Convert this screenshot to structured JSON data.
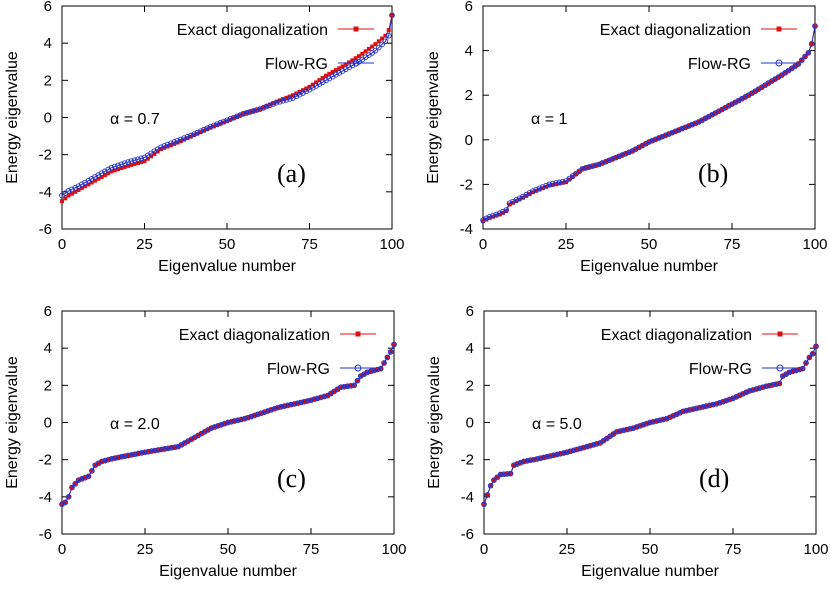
{
  "legend": {
    "exact": "Exact diagonalization",
    "flow": "Flow-RG"
  },
  "colors": {
    "exact": "#dd1111",
    "flow": "#2233cc",
    "axis": "#000000"
  },
  "chart_data": [
    {
      "type": "line",
      "panel_label": "(a)",
      "param_label": "α = 0.7",
      "xlabel": "Eigenvalue number",
      "ylabel": "Energy eigenvalue",
      "xlim": [
        0,
        100
      ],
      "ylim": [
        -6,
        6
      ],
      "xticks": [
        "0",
        "25",
        "50",
        "75",
        "100"
      ],
      "yticks": [
        "-6",
        "-4",
        "-2",
        "0",
        "2",
        "4",
        "6"
      ],
      "grid": false,
      "legend_position": "top-right",
      "series": [
        {
          "name": "Exact diagonalization",
          "marker": "square",
          "knots": [
            [
              0,
              -4.5
            ],
            [
              2,
              -4.2
            ],
            [
              5,
              -3.9
            ],
            [
              10,
              -3.4
            ],
            [
              15,
              -2.9
            ],
            [
              20,
              -2.6
            ],
            [
              25,
              -2.35
            ],
            [
              30,
              -1.7
            ],
            [
              35,
              -1.35
            ],
            [
              40,
              -0.95
            ],
            [
              45,
              -0.55
            ],
            [
              50,
              -0.2
            ],
            [
              55,
              0.2
            ],
            [
              60,
              0.45
            ],
            [
              65,
              0.85
            ],
            [
              70,
              1.2
            ],
            [
              75,
              1.65
            ],
            [
              80,
              2.25
            ],
            [
              85,
              2.75
            ],
            [
              90,
              3.3
            ],
            [
              95,
              3.95
            ],
            [
              98,
              4.4
            ],
            [
              99,
              4.7
            ],
            [
              100,
              5.5
            ]
          ]
        },
        {
          "name": "Flow-RG",
          "marker": "circle",
          "knots": [
            [
              0,
              -4.2
            ],
            [
              2,
              -3.95
            ],
            [
              5,
              -3.7
            ],
            [
              10,
              -3.2
            ],
            [
              15,
              -2.7
            ],
            [
              20,
              -2.4
            ],
            [
              25,
              -2.15
            ],
            [
              30,
              -1.6
            ],
            [
              35,
              -1.25
            ],
            [
              40,
              -0.9
            ],
            [
              45,
              -0.5
            ],
            [
              50,
              -0.15
            ],
            [
              55,
              0.2
            ],
            [
              60,
              0.45
            ],
            [
              65,
              0.8
            ],
            [
              70,
              1.05
            ],
            [
              75,
              1.5
            ],
            [
              80,
              2.0
            ],
            [
              85,
              2.5
            ],
            [
              90,
              3.0
            ],
            [
              95,
              3.6
            ],
            [
              98,
              4.1
            ],
            [
              99,
              4.4
            ],
            [
              100,
              5.5
            ]
          ]
        }
      ]
    },
    {
      "type": "line",
      "panel_label": "(b)",
      "param_label": "α = 1",
      "xlabel": "Eigenvalue number",
      "ylabel": "Energy eigenvalue",
      "xlim": [
        0,
        100
      ],
      "ylim": [
        -4,
        6
      ],
      "xticks": [
        "0",
        "25",
        "50",
        "75",
        "100"
      ],
      "yticks": [
        "-4",
        "-2",
        "0",
        "2",
        "4",
        "6"
      ],
      "grid": false,
      "legend_position": "top-right",
      "series": [
        {
          "name": "Exact diagonalization",
          "marker": "square",
          "knots": [
            [
              0,
              -3.65
            ],
            [
              2,
              -3.5
            ],
            [
              5,
              -3.35
            ],
            [
              7,
              -3.2
            ],
            [
              8,
              -2.9
            ],
            [
              12,
              -2.6
            ],
            [
              15,
              -2.35
            ],
            [
              20,
              -2.05
            ],
            [
              25,
              -1.9
            ],
            [
              30,
              -1.3
            ],
            [
              35,
              -1.1
            ],
            [
              40,
              -0.8
            ],
            [
              45,
              -0.5
            ],
            [
              50,
              -0.1
            ],
            [
              55,
              0.2
            ],
            [
              60,
              0.5
            ],
            [
              65,
              0.8
            ],
            [
              70,
              1.2
            ],
            [
              75,
              1.6
            ],
            [
              80,
              2.0
            ],
            [
              85,
              2.45
            ],
            [
              90,
              2.9
            ],
            [
              95,
              3.4
            ],
            [
              98,
              3.9
            ],
            [
              99,
              4.3
            ],
            [
              100,
              5.1
            ]
          ]
        },
        {
          "name": "Flow-RG",
          "marker": "circle",
          "knots": [
            [
              0,
              -3.6
            ],
            [
              2,
              -3.45
            ],
            [
              5,
              -3.3
            ],
            [
              7,
              -3.15
            ],
            [
              8,
              -2.85
            ],
            [
              12,
              -2.55
            ],
            [
              15,
              -2.3
            ],
            [
              20,
              -2.0
            ],
            [
              25,
              -1.85
            ],
            [
              30,
              -1.3
            ],
            [
              35,
              -1.1
            ],
            [
              40,
              -0.8
            ],
            [
              45,
              -0.5
            ],
            [
              50,
              -0.1
            ],
            [
              55,
              0.2
            ],
            [
              60,
              0.5
            ],
            [
              65,
              0.8
            ],
            [
              70,
              1.2
            ],
            [
              75,
              1.6
            ],
            [
              80,
              2.0
            ],
            [
              85,
              2.45
            ],
            [
              90,
              2.9
            ],
            [
              95,
              3.4
            ],
            [
              98,
              3.9
            ],
            [
              99,
              4.3
            ],
            [
              100,
              5.1
            ]
          ]
        }
      ]
    },
    {
      "type": "line",
      "panel_label": "(c)",
      "param_label": "α = 2.0",
      "xlabel": "Eigenvalue number",
      "ylabel": "Energy eigenvalue",
      "xlim": [
        0,
        100
      ],
      "ylim": [
        -6,
        6
      ],
      "xticks": [
        "0",
        "25",
        "50",
        "75",
        "100"
      ],
      "yticks": [
        "-6",
        "-4",
        "-2",
        "0",
        "2",
        "4",
        "6"
      ],
      "grid": false,
      "legend_position": "top-right",
      "series": [
        {
          "name": "Exact diagonalization",
          "marker": "square",
          "knots": [
            [
              0,
              -4.4
            ],
            [
              1,
              -4.3
            ],
            [
              2,
              -4.0
            ],
            [
              3,
              -3.5
            ],
            [
              5,
              -3.1
            ],
            [
              8,
              -2.9
            ],
            [
              9,
              -2.6
            ],
            [
              10,
              -2.3
            ],
            [
              12,
              -2.1
            ],
            [
              15,
              -1.95
            ],
            [
              25,
              -1.6
            ],
            [
              35,
              -1.3
            ],
            [
              40,
              -0.8
            ],
            [
              45,
              -0.3
            ],
            [
              50,
              0.0
            ],
            [
              55,
              0.2
            ],
            [
              60,
              0.5
            ],
            [
              65,
              0.8
            ],
            [
              70,
              1.0
            ],
            [
              75,
              1.2
            ],
            [
              80,
              1.45
            ],
            [
              84,
              1.9
            ],
            [
              88,
              2.0
            ],
            [
              90,
              2.5
            ],
            [
              92,
              2.7
            ],
            [
              96,
              2.9
            ],
            [
              98,
              3.5
            ],
            [
              99,
              3.8
            ],
            [
              100,
              4.2
            ]
          ]
        },
        {
          "name": "Flow-RG",
          "marker": "circle",
          "knots": [
            [
              0,
              -4.4
            ],
            [
              1,
              -4.3
            ],
            [
              2,
              -4.0
            ],
            [
              3,
              -3.5
            ],
            [
              5,
              -3.1
            ],
            [
              8,
              -2.9
            ],
            [
              9,
              -2.6
            ],
            [
              10,
              -2.3
            ],
            [
              12,
              -2.1
            ],
            [
              15,
              -1.95
            ],
            [
              25,
              -1.6
            ],
            [
              35,
              -1.3
            ],
            [
              40,
              -0.8
            ],
            [
              45,
              -0.3
            ],
            [
              50,
              0.0
            ],
            [
              55,
              0.2
            ],
            [
              60,
              0.5
            ],
            [
              65,
              0.8
            ],
            [
              70,
              1.0
            ],
            [
              75,
              1.2
            ],
            [
              80,
              1.45
            ],
            [
              84,
              1.9
            ],
            [
              88,
              2.0
            ],
            [
              90,
              2.5
            ],
            [
              92,
              2.7
            ],
            [
              96,
              2.9
            ],
            [
              98,
              3.5
            ],
            [
              99,
              3.8
            ],
            [
              100,
              4.2
            ]
          ]
        }
      ]
    },
    {
      "type": "line",
      "panel_label": "(d)",
      "param_label": "α = 5.0",
      "xlabel": "Eigenvalue number",
      "ylabel": "Energy eigenvalue",
      "xlim": [
        0,
        100
      ],
      "ylim": [
        -6,
        6
      ],
      "xticks": [
        "0",
        "25",
        "50",
        "75",
        "100"
      ],
      "yticks": [
        "-6",
        "-4",
        "-2",
        "0",
        "2",
        "4",
        "6"
      ],
      "grid": false,
      "legend_position": "top-right",
      "series": [
        {
          "name": "Exact diagonalization",
          "marker": "square",
          "knots": [
            [
              0,
              -4.4
            ],
            [
              1,
              -3.9
            ],
            [
              2,
              -3.4
            ],
            [
              3,
              -3.1
            ],
            [
              5,
              -2.8
            ],
            [
              8,
              -2.75
            ],
            [
              9,
              -2.3
            ],
            [
              12,
              -2.1
            ],
            [
              15,
              -2.0
            ],
            [
              25,
              -1.6
            ],
            [
              35,
              -1.1
            ],
            [
              40,
              -0.5
            ],
            [
              45,
              -0.3
            ],
            [
              50,
              0.0
            ],
            [
              55,
              0.2
            ],
            [
              60,
              0.6
            ],
            [
              65,
              0.8
            ],
            [
              70,
              1.0
            ],
            [
              75,
              1.3
            ],
            [
              80,
              1.7
            ],
            [
              85,
              1.95
            ],
            [
              89,
              2.1
            ],
            [
              90,
              2.5
            ],
            [
              92,
              2.7
            ],
            [
              96,
              2.9
            ],
            [
              98,
              3.5
            ],
            [
              99,
              3.7
            ],
            [
              100,
              4.1
            ]
          ]
        },
        {
          "name": "Flow-RG",
          "marker": "circle",
          "knots": [
            [
              0,
              -4.4
            ],
            [
              1,
              -3.9
            ],
            [
              2,
              -3.4
            ],
            [
              3,
              -3.1
            ],
            [
              5,
              -2.8
            ],
            [
              8,
              -2.75
            ],
            [
              9,
              -2.3
            ],
            [
              12,
              -2.1
            ],
            [
              15,
              -2.0
            ],
            [
              25,
              -1.6
            ],
            [
              35,
              -1.1
            ],
            [
              40,
              -0.5
            ],
            [
              45,
              -0.3
            ],
            [
              50,
              0.0
            ],
            [
              55,
              0.2
            ],
            [
              60,
              0.6
            ],
            [
              65,
              0.8
            ],
            [
              70,
              1.0
            ],
            [
              75,
              1.3
            ],
            [
              80,
              1.7
            ],
            [
              85,
              1.95
            ],
            [
              89,
              2.1
            ],
            [
              90,
              2.5
            ],
            [
              92,
              2.7
            ],
            [
              96,
              2.9
            ],
            [
              98,
              3.5
            ],
            [
              99,
              3.7
            ],
            [
              100,
              4.1
            ]
          ]
        }
      ]
    }
  ]
}
